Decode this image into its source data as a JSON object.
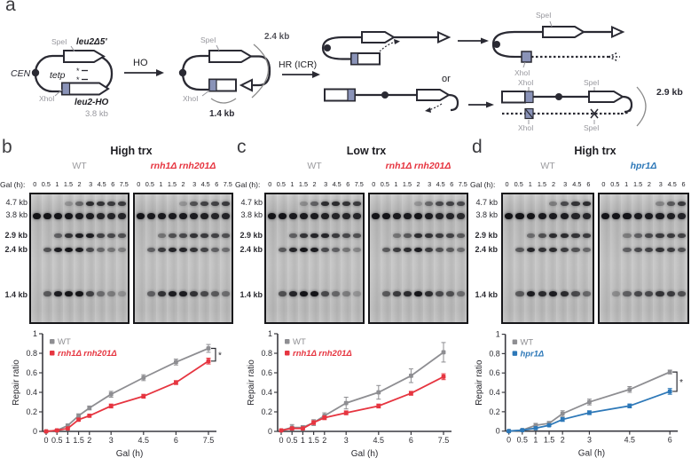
{
  "colors": {
    "wt": "#8e8e92",
    "rnh": "#e63540",
    "hpr1": "#2d78b8",
    "axis": "#3a3a40",
    "gray_label": "#97979d",
    "diagram_dark": "#2a2a33",
    "slate_box": "#8a93b8"
  },
  "panel_a": {
    "label": "a",
    "cen": "CEN",
    "tetp": "tetp",
    "spe1": "SpeI",
    "leu2d5": "leu2Δ5'",
    "xho1": "XhoI",
    "leu2ho": "leu2-HO",
    "plasmid_size": "3.8 kb",
    "ho": "HO",
    "cut_spe1": "SpeI",
    "cut_xho1": "XhoI",
    "frag_24": "2.4 kb",
    "frag_14": "1.4 kb",
    "hr": "HR (ICR)",
    "or": "or",
    "p1_spe1": "SpeI",
    "p1_xho1": "XhoI",
    "p2_xho1_top": "XhoI",
    "p2_spe1_top": "SpeI",
    "p2_xho1_bot": "XhoI",
    "p2_spe1_bot": "SpeI",
    "p2_size": "2.9 kb"
  },
  "size_markers": [
    {
      "text": "4.7 kb",
      "bold": false,
      "y": 0.075
    },
    {
      "text": "3.8 kb",
      "bold": false,
      "y": 0.17
    },
    {
      "text": "2.9 kb",
      "bold": true,
      "y": 0.325
    },
    {
      "text": "2.4 kb",
      "bold": true,
      "y": 0.435
    },
    {
      "text": "1.4 kb",
      "bold": true,
      "y": 0.775
    }
  ],
  "band_heights": {
    "4.7": 5,
    "3.8": 7,
    "2.9": 5,
    "2.4": 5.5,
    "1.4": 6
  },
  "panels": [
    {
      "label": "b",
      "title": "High trx",
      "gal_label": "Gal (h):",
      "strains": [
        {
          "name": "WT",
          "color": "wt"
        },
        {
          "name": "rnh1Δ rnh201Δ",
          "color": "rnh"
        }
      ],
      "timepoints": [
        "0",
        "0.5",
        "1",
        "1.5",
        "2",
        "3",
        "4.5",
        "6",
        "7.5"
      ],
      "gels": [
        {
          "name": "WT",
          "intensities": {
            "4.7": [
              0,
              0,
              0,
              0.12,
              0.4,
              0.8,
              0.75,
              0.7,
              0.7
            ],
            "3.8": [
              0.97,
              0.97,
              0.95,
              0.95,
              0.92,
              0.9,
              0.85,
              0.85,
              0.85
            ],
            "2.9": [
              0,
              0,
              0.45,
              0.75,
              0.9,
              0.9,
              0.65,
              0.6,
              0.55
            ],
            "2.4": [
              0,
              0.55,
              0.9,
              0.95,
              0.9,
              0.6,
              0.4,
              0.3,
              0.25
            ],
            "1.4": [
              0,
              0.5,
              0.9,
              0.97,
              0.97,
              0.65,
              0.35,
              0.25,
              0.12
            ]
          }
        },
        {
          "name": "rnh1Δ rnh201Δ",
          "intensities": {
            "4.7": [
              0,
              0,
              0,
              0,
              0.1,
              0.55,
              0.65,
              0.65,
              0.7
            ],
            "3.8": [
              0.95,
              0.92,
              0.92,
              0.92,
              0.92,
              0.9,
              0.88,
              0.85,
              0.85
            ],
            "2.9": [
              0,
              0,
              0.3,
              0.55,
              0.6,
              0.75,
              0.7,
              0.65,
              0.55
            ],
            "2.4": [
              0,
              0.45,
              0.7,
              0.85,
              0.85,
              0.75,
              0.65,
              0.45,
              0.35
            ],
            "1.4": [
              0,
              0.45,
              0.75,
              0.9,
              0.9,
              0.75,
              0.6,
              0.5,
              0.35
            ]
          }
        }
      ]
    },
    {
      "label": "c",
      "title": "Low trx",
      "gal_label": "Gal (h):",
      "strains": [
        {
          "name": "WT",
          "color": "wt"
        },
        {
          "name": "rnh1Δ rnh201Δ",
          "color": "rnh"
        }
      ],
      "timepoints": [
        "0",
        "0.5",
        "1",
        "1.5",
        "2",
        "3",
        "4.5",
        "6",
        "7.5"
      ],
      "gels": [
        {
          "name": "WT",
          "intensities": {
            "4.7": [
              0,
              0,
              0,
              0.15,
              0.45,
              0.8,
              0.8,
              0.75,
              0.7
            ],
            "3.8": [
              0.97,
              0.95,
              0.92,
              0.92,
              0.92,
              0.88,
              0.85,
              0.85,
              0.85
            ],
            "2.9": [
              0,
              0,
              0.45,
              0.75,
              0.85,
              0.85,
              0.7,
              0.6,
              0.55
            ],
            "2.4": [
              0,
              0.5,
              0.85,
              0.95,
              0.9,
              0.6,
              0.45,
              0.3,
              0.2
            ],
            "1.4": [
              0,
              0.55,
              0.85,
              0.95,
              0.95,
              0.6,
              0.4,
              0.25,
              0.1
            ]
          }
        },
        {
          "name": "rnh1Δ rnh201Δ",
          "intensities": {
            "4.7": [
              0,
              0,
              0,
              0,
              0.1,
              0.4,
              0.6,
              0.65,
              0.6
            ],
            "3.8": [
              0.95,
              0.95,
              0.92,
              0.92,
              0.95,
              0.9,
              0.85,
              0.85,
              0.8
            ],
            "2.9": [
              0,
              0,
              0.3,
              0.5,
              0.8,
              0.75,
              0.7,
              0.65,
              0.5
            ],
            "2.4": [
              0,
              0.5,
              0.7,
              0.8,
              0.9,
              0.7,
              0.55,
              0.5,
              0.35
            ],
            "1.4": [
              0,
              0.5,
              0.7,
              0.8,
              0.95,
              0.8,
              0.6,
              0.55,
              0.35
            ]
          }
        }
      ]
    },
    {
      "label": "d",
      "title": "High trx",
      "gal_label": "Gal (h):",
      "strains": [
        {
          "name": "WT",
          "color": "wt"
        },
        {
          "name": "hpr1Δ",
          "color": "hpr1"
        }
      ],
      "timepoints": [
        "0",
        "0.5",
        "1",
        "1.5",
        "2",
        "3",
        "4.5",
        "6"
      ],
      "gels": [
        {
          "name": "WT",
          "intensities": {
            "4.7": [
              0,
              0,
              0,
              0,
              0.25,
              0.6,
              0.75,
              0.8
            ],
            "3.8": [
              0.97,
              0.97,
              0.97,
              0.92,
              0.92,
              0.9,
              0.85,
              0.85
            ],
            "2.9": [
              0,
              0,
              0.35,
              0.55,
              0.8,
              0.8,
              0.75,
              0.7
            ],
            "2.4": [
              0,
              0.5,
              0.85,
              0.75,
              0.8,
              0.7,
              0.55,
              0.4
            ],
            "1.4": [
              0,
              0.5,
              0.9,
              0.8,
              0.9,
              0.8,
              0.6,
              0.4
            ]
          }
        },
        {
          "name": "hpr1Δ",
          "intensities": {
            "4.7": [
              0,
              0,
              0,
              0,
              0,
              0.2,
              0.5,
              0.7
            ],
            "3.8": [
              0.95,
              0.95,
              0.95,
              0.92,
              0.92,
              0.9,
              0.88,
              0.85
            ],
            "2.9": [
              0,
              0,
              0.25,
              0.45,
              0.6,
              0.7,
              0.7,
              0.65
            ],
            "2.4": [
              0,
              0,
              0.45,
              0.6,
              0.65,
              0.75,
              0.7,
              0.55
            ],
            "1.4": [
              0,
              0.15,
              0.45,
              0.6,
              0.6,
              0.75,
              0.7,
              0.55
            ]
          }
        }
      ]
    }
  ],
  "chart_data": [
    {
      "type": "line",
      "ylabel": "Repair ratio",
      "xlabel": "Gal (h)",
      "ylim": [
        0,
        1
      ],
      "yticks": [
        0,
        0.2,
        0.4,
        0.6,
        0.8,
        1
      ],
      "x": [
        0,
        0.5,
        1,
        1.5,
        2,
        3,
        4.5,
        6,
        7.5
      ],
      "x_tick_labels": [
        "0",
        "0.5",
        "1",
        "1.5",
        "2",
        "3",
        "4.5",
        "6",
        "7.5"
      ],
      "legend_position": "top-left",
      "significance": "*",
      "series": [
        {
          "name": "WT",
          "color_key": "wt",
          "italic": false,
          "values": [
            0,
            0.01,
            0.06,
            0.16,
            0.24,
            0.38,
            0.55,
            0.71,
            0.85
          ],
          "errors": [
            0.01,
            0.01,
            0.015,
            0.02,
            0.02,
            0.03,
            0.03,
            0.03,
            0.04
          ]
        },
        {
          "name": "rnh1Δ rnh201Δ",
          "color_key": "rnh",
          "italic": true,
          "values": [
            0,
            0.01,
            0.03,
            0.12,
            0.16,
            0.26,
            0.36,
            0.5,
            0.72
          ],
          "errors": [
            0.005,
            0.005,
            0.01,
            0.015,
            0.015,
            0.02,
            0.02,
            0.02,
            0.03
          ]
        }
      ]
    },
    {
      "type": "line",
      "ylabel": "Repair ratio",
      "xlabel": "Gal (h)",
      "ylim": [
        0,
        1
      ],
      "yticks": [
        0,
        0.2,
        0.4,
        0.6,
        0.8,
        1
      ],
      "x": [
        0,
        0.5,
        1,
        1.5,
        2,
        3,
        4.5,
        6,
        7.5
      ],
      "x_tick_labels": [
        "0",
        "0.5",
        "1",
        "1.5",
        "2",
        "3",
        "4.5",
        "6",
        "7.5"
      ],
      "legend_position": "top-left",
      "significance": null,
      "series": [
        {
          "name": "WT",
          "color_key": "wt",
          "italic": false,
          "values": [
            0.01,
            0.04,
            0.04,
            0.09,
            0.16,
            0.29,
            0.4,
            0.57,
            0.81
          ],
          "errors": [
            0.01,
            0.03,
            0.02,
            0.03,
            0.03,
            0.06,
            0.07,
            0.07,
            0.1
          ]
        },
        {
          "name": "rnh1Δ rnh201Δ",
          "color_key": "rnh",
          "italic": true,
          "values": [
            0.01,
            0.03,
            0.03,
            0.09,
            0.14,
            0.19,
            0.26,
            0.39,
            0.56
          ],
          "errors": [
            0.005,
            0.01,
            0.01,
            0.02,
            0.02,
            0.02,
            0.02,
            0.02,
            0.03
          ]
        }
      ]
    },
    {
      "type": "line",
      "ylabel": "Repair ratio",
      "xlabel": "Gal (h)",
      "ylim": [
        0,
        1
      ],
      "yticks": [
        0,
        0.2,
        0.4,
        0.6,
        0.8,
        1
      ],
      "x": [
        0,
        0.5,
        1,
        1.5,
        2,
        3,
        4.5,
        6
      ],
      "x_tick_labels": [
        "0",
        "0.5",
        "1",
        "1.5",
        "2",
        "3",
        "4.5",
        "6"
      ],
      "legend_position": "top-left",
      "significance": "*",
      "series": [
        {
          "name": "WT",
          "color_key": "wt",
          "italic": false,
          "values": [
            0,
            0.01,
            0.06,
            0.08,
            0.18,
            0.3,
            0.43,
            0.61
          ],
          "errors": [
            0.005,
            0.01,
            0.02,
            0.02,
            0.03,
            0.03,
            0.03,
            0.02
          ]
        },
        {
          "name": "hpr1Δ",
          "color_key": "hpr1",
          "italic": true,
          "values": [
            0,
            0.01,
            0.03,
            0.06,
            0.12,
            0.19,
            0.26,
            0.41
          ],
          "errors": [
            0.005,
            0.005,
            0.01,
            0.01,
            0.02,
            0.02,
            0.02,
            0.03
          ]
        }
      ]
    }
  ]
}
